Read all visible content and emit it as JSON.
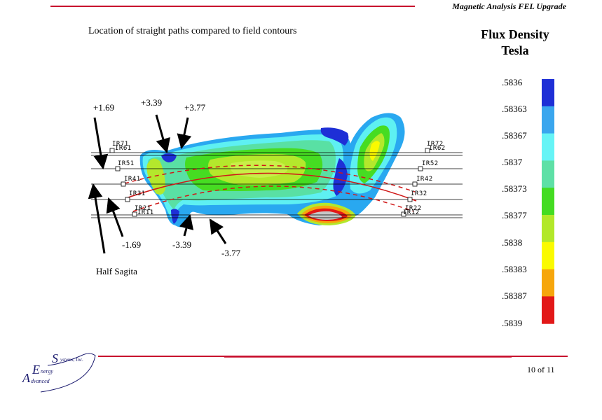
{
  "header": {
    "title": "Magnetic Analysis FEL Upgrade"
  },
  "figure": {
    "subtitle": "Location of straight paths compared to field contours",
    "path_labels": [
      "IR71",
      "IR61",
      "IR51",
      "IR41",
      "IR31",
      "IR21",
      "IR11",
      "IR72",
      "IR62",
      "IR52",
      "IR42",
      "IR32",
      "IR22",
      "IR12"
    ],
    "offset_labels": [
      "+1.69",
      "+3.39",
      "+3.77",
      "-1.69",
      "-3.39",
      "-3.77"
    ],
    "half_sagita_label": "Half Sagita"
  },
  "legend": {
    "title_line1": "Flux Density",
    "title_line2": "Tesla",
    "values": [
      ".5836",
      ".58363",
      ".58367",
      ".5837",
      ".58373",
      ".58377",
      ".5838",
      ".58383",
      ".58387",
      ".5839"
    ],
    "colors": [
      "#1e2fd6",
      "#3aa6ee",
      "#66f4f6",
      "#5ee0a6",
      "#44dc22",
      "#b2e82a",
      "#fafa00",
      "#f6a60c",
      "#e21818"
    ]
  },
  "footer": {
    "logo_text": [
      "S",
      "ystems, Inc.",
      "E",
      "nergy",
      "A",
      "dvanced"
    ],
    "page": "10 of 11"
  }
}
